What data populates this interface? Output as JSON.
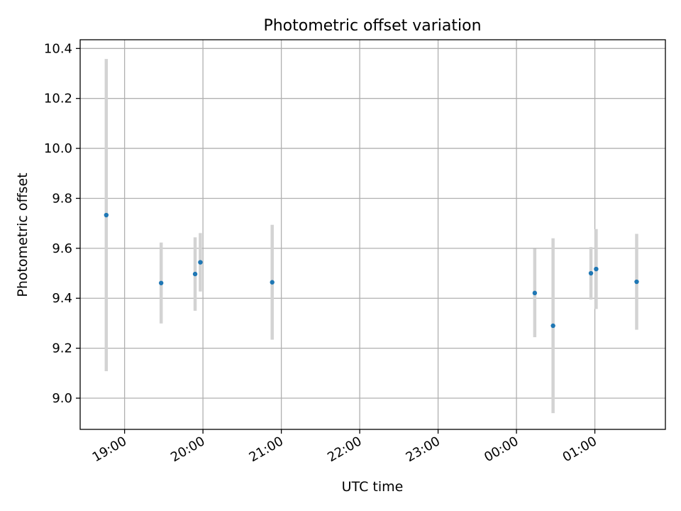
{
  "chart_data": {
    "type": "scatter",
    "title": "Photometric offset variation",
    "xlabel": "UTC time",
    "ylabel": "Photometric offset",
    "x_axis_type": "time",
    "xlim": [
      "18:26",
      "01:54"
    ],
    "ylim": [
      8.875,
      10.435
    ],
    "x_ticks": [
      "19:00",
      "20:00",
      "21:00",
      "22:00",
      "23:00",
      "00:00",
      "01:00"
    ],
    "y_ticks": [
      9.0,
      9.2,
      9.4,
      9.6,
      9.8,
      10.0,
      10.2,
      10.4
    ],
    "y_tick_labels": [
      "9.0",
      "9.2",
      "9.4",
      "9.6",
      "9.8",
      "10.0",
      "10.2",
      "10.4"
    ],
    "grid": true,
    "marker_color": "#1f77b4",
    "errorbar_color": "#d3d3d3",
    "points": [
      {
        "time": "18:46",
        "y": 9.733,
        "err": 0.625
      },
      {
        "time": "19:28",
        "y": 9.461,
        "err": 0.162
      },
      {
        "time": "19:54",
        "y": 9.497,
        "err": 0.147
      },
      {
        "time": "19:58",
        "y": 9.544,
        "err": 0.117
      },
      {
        "time": "20:53",
        "y": 9.464,
        "err": 0.23
      },
      {
        "time": "00:14",
        "y": 9.421,
        "err": 0.177
      },
      {
        "time": "00:28",
        "y": 9.29,
        "err": 0.35
      },
      {
        "time": "00:57",
        "y": 9.5,
        "err": 0.105
      },
      {
        "time": "01:01",
        "y": 9.517,
        "err": 0.16
      },
      {
        "time": "01:32",
        "y": 9.466,
        "err": 0.192
      }
    ]
  }
}
